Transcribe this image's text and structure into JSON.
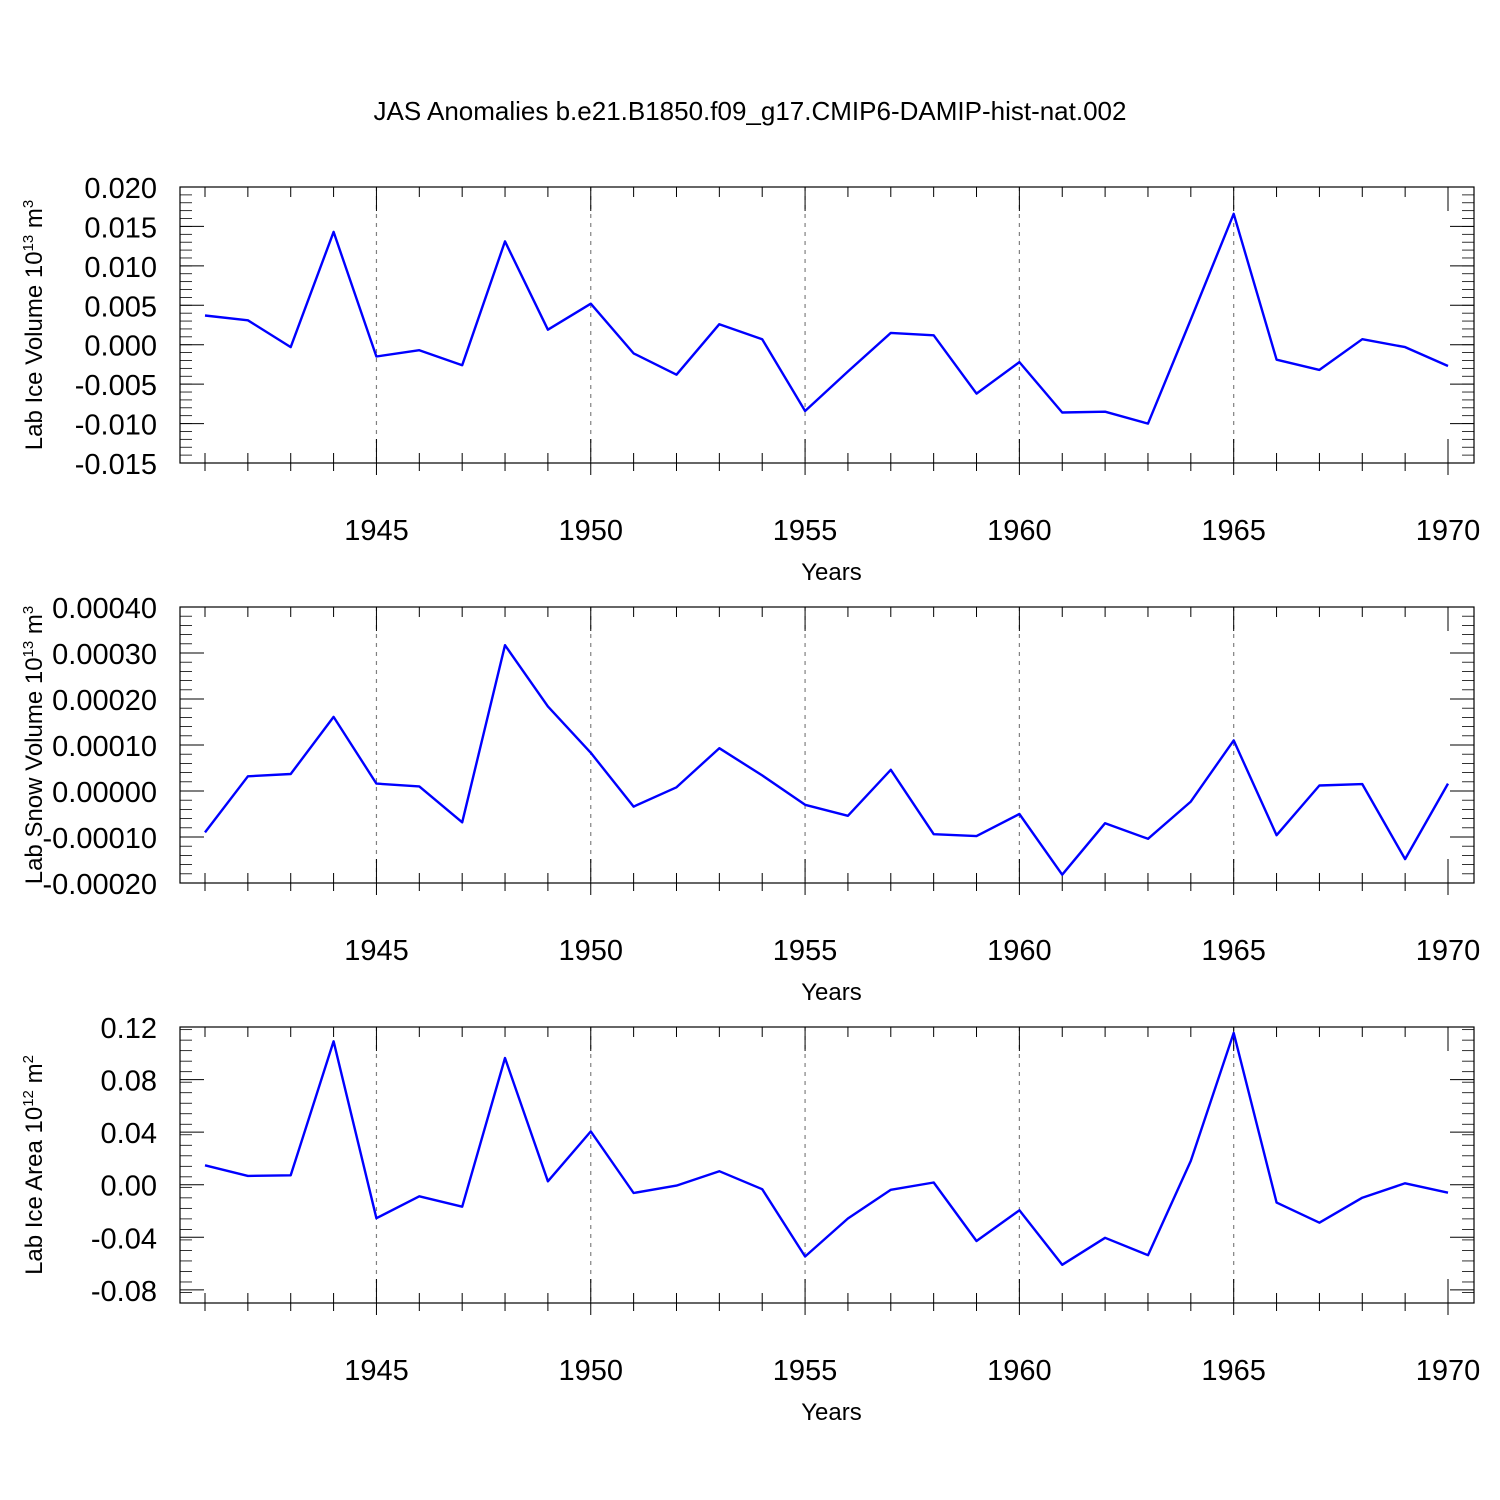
{
  "title": "JAS Anomalies b.e21.B1850.f09_g17.CMIP6-DAMIP-hist-nat.002",
  "colors": {
    "line": "#0000ff",
    "axis": "#000000",
    "grid": "#808080"
  },
  "chart_data": [
    {
      "type": "line",
      "xlabel": "Years",
      "ylabel": "Lab Ice Volume 10",
      "ylabel_exp": "13",
      "ylabel_unit": "m",
      "ylabel_unit_exp": "3",
      "xlim": [
        1941,
        1970
      ],
      "ylim": [
        -0.015,
        0.02
      ],
      "xticks": [
        1945,
        1950,
        1955,
        1960,
        1965,
        1970
      ],
      "yticks": [
        -0.015,
        -0.01,
        -0.005,
        0.0,
        0.005,
        0.01,
        0.015,
        0.02
      ],
      "ytick_labels": [
        "-0.015",
        "-0.010",
        "-0.005",
        "0.000",
        "0.005",
        "0.010",
        "0.015",
        "0.020"
      ],
      "ytick_minor": 0.001,
      "grid_x": [
        1945,
        1950,
        1955,
        1960,
        1965
      ],
      "x": [
        1941,
        1942,
        1943,
        1944,
        1945,
        1946,
        1947,
        1948,
        1949,
        1950,
        1951,
        1952,
        1953,
        1954,
        1955,
        1956,
        1957,
        1958,
        1959,
        1960,
        1961,
        1962,
        1963,
        1964,
        1965,
        1966,
        1967,
        1968,
        1969,
        1970
      ],
      "values": [
        0.0037,
        0.0031,
        -0.0003,
        0.0143,
        -0.0015,
        -0.0007,
        -0.0026,
        0.0131,
        0.0019,
        0.0052,
        -0.0011,
        -0.0038,
        0.0026,
        0.0007,
        -0.0084,
        -0.0034,
        0.0015,
        0.0012,
        -0.0062,
        -0.0022,
        -0.0086,
        -0.0085,
        -0.01,
        0.0032,
        0.0166,
        -0.0019,
        -0.0032,
        0.0007,
        -0.0003,
        -0.0027
      ]
    },
    {
      "type": "line",
      "xlabel": "Years",
      "ylabel": "Lab Snow Volume 10",
      "ylabel_exp": "13",
      "ylabel_unit": "m",
      "ylabel_unit_exp": "3",
      "xlim": [
        1941,
        1970
      ],
      "ylim": [
        -0.0002,
        0.0004
      ],
      "xticks": [
        1945,
        1950,
        1955,
        1960,
        1965,
        1970
      ],
      "yticks": [
        -0.0002,
        -0.0001,
        0.0,
        0.0001,
        0.0002,
        0.0003,
        0.0004
      ],
      "ytick_labels": [
        "-0.00020",
        "-0.00010",
        "0.00000",
        "0.00010",
        "0.00020",
        "0.00030",
        "0.00040"
      ],
      "ytick_minor": 2e-05,
      "grid_x": [
        1945,
        1950,
        1955,
        1960,
        1965
      ],
      "x": [
        1941,
        1942,
        1943,
        1944,
        1945,
        1946,
        1947,
        1948,
        1949,
        1950,
        1951,
        1952,
        1953,
        1954,
        1955,
        1956,
        1957,
        1958,
        1959,
        1960,
        1961,
        1962,
        1963,
        1964,
        1965,
        1966,
        1967,
        1968,
        1969,
        1970
      ],
      "values": [
        -9e-05,
        3.2e-05,
        3.7e-05,
        0.000161,
        1.6e-05,
        1e-05,
        -6.8e-05,
        0.000317,
        0.000184,
        8.3e-05,
        -3.4e-05,
        8e-06,
        9.3e-05,
        3.4e-05,
        -3e-05,
        -5.4e-05,
        4.6e-05,
        -9.4e-05,
        -9.8e-05,
        -5e-05,
        -0.000182,
        -7e-05,
        -0.000104,
        -2.3e-05,
        0.00011,
        -9.6e-05,
        1.2e-05,
        1.5e-05,
        -0.000148,
        1.6e-05
      ]
    },
    {
      "type": "line",
      "xlabel": "Years",
      "ylabel": "Lab Ice Area 10",
      "ylabel_exp": "12",
      "ylabel_unit": "m",
      "ylabel_unit_exp": "2",
      "xlim": [
        1941,
        1970
      ],
      "ylim": [
        -0.09,
        0.12
      ],
      "xticks": [
        1945,
        1950,
        1955,
        1960,
        1965,
        1970
      ],
      "yticks": [
        -0.08,
        -0.04,
        0.0,
        0.04,
        0.08,
        0.12
      ],
      "ytick_labels": [
        "-0.08",
        "-0.04",
        "0.00",
        "0.04",
        "0.08",
        "0.12"
      ],
      "ytick_minor": 0.008,
      "grid_x": [
        1945,
        1950,
        1955,
        1960,
        1965
      ],
      "x": [
        1941,
        1942,
        1943,
        1944,
        1945,
        1946,
        1947,
        1948,
        1949,
        1950,
        1951,
        1952,
        1953,
        1954,
        1955,
        1956,
        1957,
        1958,
        1959,
        1960,
        1961,
        1962,
        1963,
        1964,
        1965,
        1966,
        1967,
        1968,
        1969,
        1970
      ],
      "values": [
        0.0148,
        0.0067,
        0.0072,
        0.1091,
        -0.0255,
        -0.0088,
        -0.0167,
        0.0964,
        0.0026,
        0.0406,
        -0.0063,
        -0.0007,
        0.0103,
        -0.0034,
        -0.0546,
        -0.0257,
        -0.0039,
        0.0017,
        -0.0428,
        -0.0195,
        -0.0609,
        -0.0404,
        -0.0536,
        0.0181,
        0.1155,
        -0.0136,
        -0.0289,
        -0.0099,
        0.0011,
        -0.0061
      ]
    }
  ]
}
